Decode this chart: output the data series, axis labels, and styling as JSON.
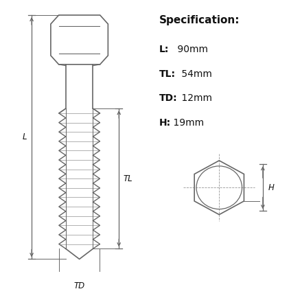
{
  "background_color": "#ffffff",
  "line_color": "#666666",
  "text_color": "#111111",
  "spec_title": "Specification:",
  "spec_items": [
    {
      "bold": "L:",
      "normal": " 90mm"
    },
    {
      "bold": "TL:",
      "normal": " 54mm"
    },
    {
      "bold": "TD:",
      "normal": " 12mm"
    },
    {
      "bold": "H:",
      "normal": " 19mm"
    }
  ],
  "fig_width": 4.21,
  "fig_height": 4.21,
  "dpi": 100
}
